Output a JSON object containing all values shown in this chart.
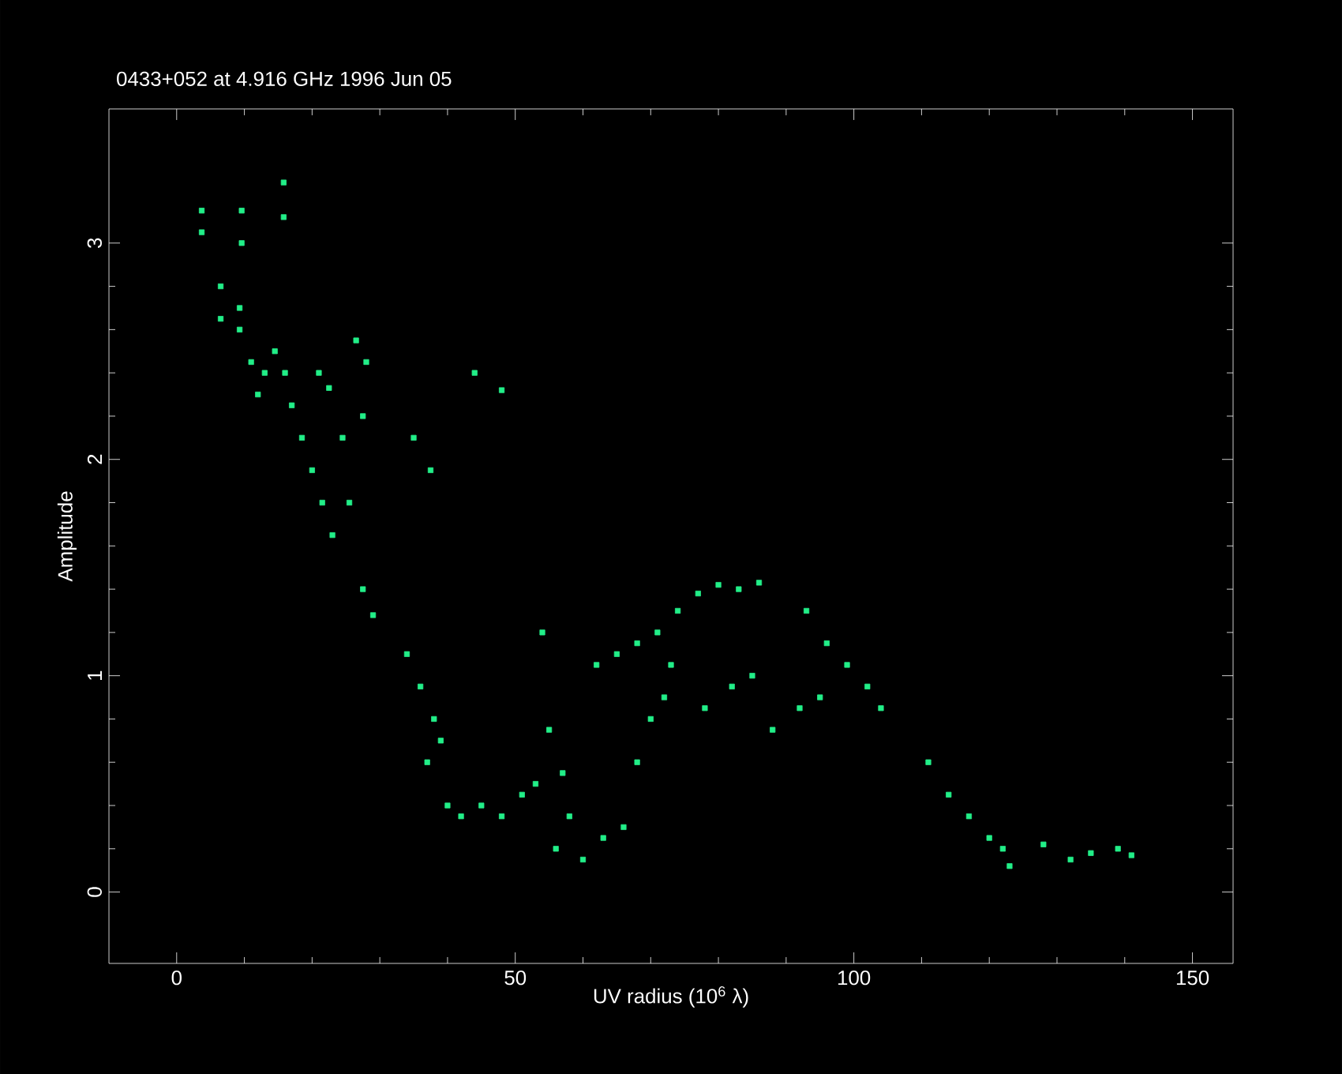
{
  "chart_data": {
    "type": "scatter",
    "title": "0433+052 at 4.916 GHz 1996 Jun 05",
    "xlabel": "UV radius  (10$^{6}$ λ)",
    "ylabel": "Amplitude",
    "xlim": [
      -10,
      156
    ],
    "ylim": [
      -0.33,
      3.62
    ],
    "xticks": [
      0,
      50,
      100,
      150
    ],
    "yticks": [
      0,
      1,
      2,
      3
    ],
    "grid": false,
    "marker": "square",
    "series": [
      {
        "color": "#22ee88",
        "x": [
          3.7,
          3.7,
          6.5,
          6.5,
          9.6,
          9.6,
          9.3,
          9.3,
          15.8,
          15.8,
          11,
          13,
          14.5,
          12,
          16,
          17,
          18.5,
          20,
          21.5,
          23,
          21,
          22.5,
          24.5,
          25.5,
          26.5,
          28,
          27.5,
          27.5,
          29,
          35,
          37.5,
          34,
          36,
          38,
          39,
          37,
          40,
          42,
          45,
          48,
          44,
          48,
          51,
          53,
          55,
          57,
          58,
          54,
          56,
          60,
          63,
          66,
          68,
          70,
          72,
          62,
          65,
          68,
          71,
          74,
          77,
          80,
          83,
          86,
          73,
          78,
          82,
          85,
          88,
          92,
          95,
          93,
          96,
          99,
          102,
          104,
          111,
          114,
          117,
          120,
          122,
          123,
          128,
          132,
          135,
          139,
          141
        ],
        "values": [
          3.15,
          3.05,
          2.8,
          2.65,
          3.15,
          3.0,
          2.7,
          2.6,
          3.28,
          3.12,
          2.45,
          2.4,
          2.5,
          2.3,
          2.4,
          2.25,
          2.1,
          1.95,
          1.8,
          1.65,
          2.4,
          2.33,
          2.1,
          1.8,
          2.55,
          2.45,
          2.2,
          1.4,
          1.28,
          2.1,
          1.95,
          1.1,
          0.95,
          0.8,
          0.7,
          0.6,
          0.4,
          0.35,
          0.4,
          0.35,
          2.4,
          2.32,
          0.45,
          0.5,
          0.75,
          0.55,
          0.35,
          1.2,
          0.2,
          0.15,
          0.25,
          0.3,
          0.6,
          0.8,
          0.9,
          1.05,
          1.1,
          1.15,
          1.2,
          1.3,
          1.38,
          1.42,
          1.4,
          1.43,
          1.05,
          0.85,
          0.95,
          1.0,
          0.75,
          0.85,
          0.9,
          1.3,
          1.15,
          1.05,
          0.95,
          0.85,
          0.6,
          0.45,
          0.35,
          0.25,
          0.2,
          0.12,
          0.22,
          0.15,
          0.18,
          0.2,
          0.17
        ]
      }
    ]
  }
}
